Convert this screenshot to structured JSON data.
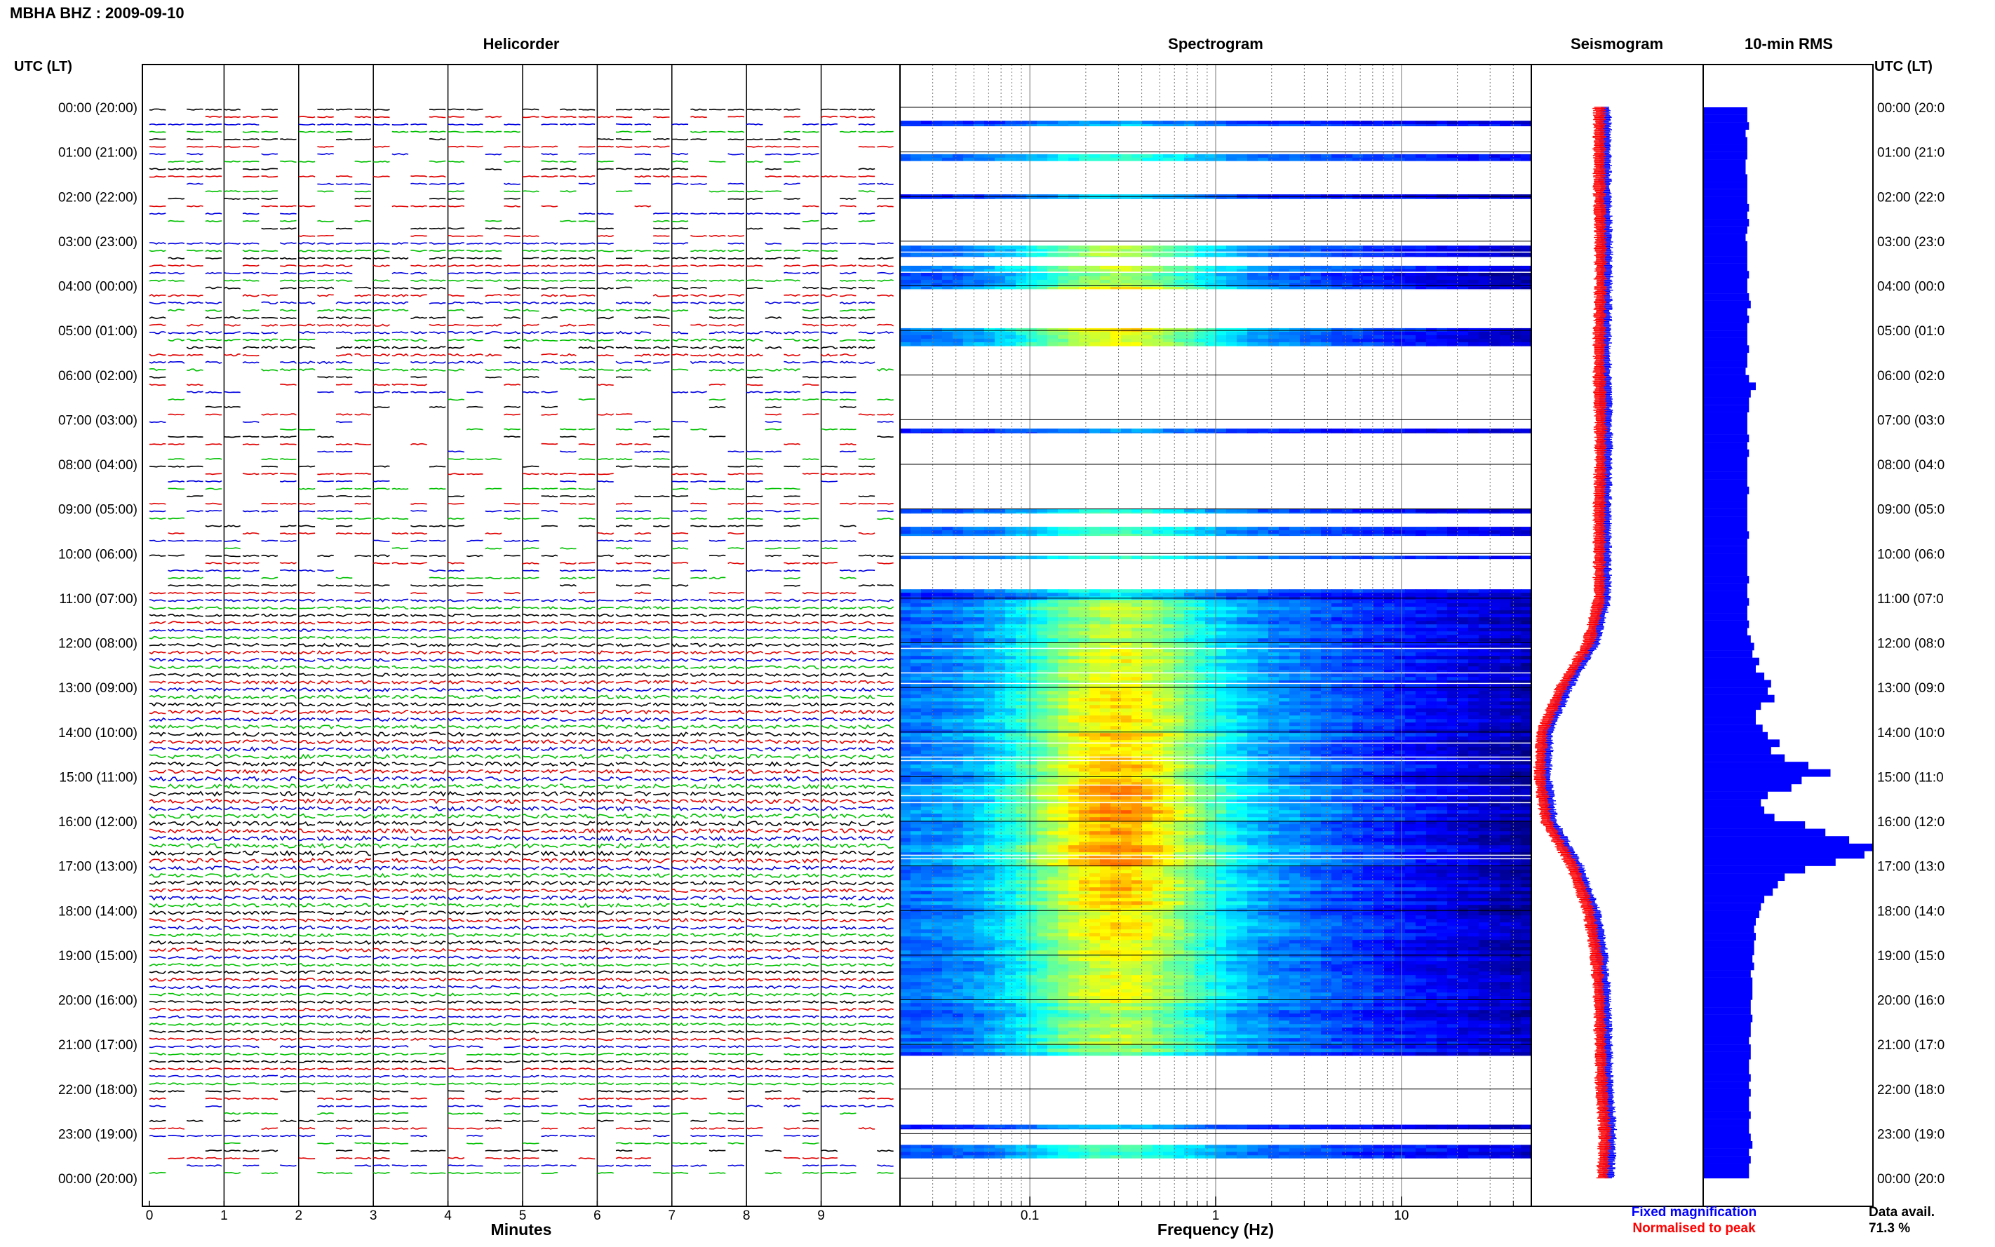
{
  "header": {
    "station_date": "MBHA BHZ : 2009-09-10",
    "utc_label_left": "UTC (LT)",
    "utc_label_right": "UTC (LT)"
  },
  "panels": {
    "helicorder_title": "Helicorder",
    "spectrogram_title": "Spectrogram",
    "seismogram_title": "Seismogram",
    "rms_title": "10-min RMS"
  },
  "time_labels": [
    "00:00 (20:00)",
    "01:00 (21:00)",
    "02:00 (22:00)",
    "03:00 (23:00)",
    "04:00 (00:00)",
    "05:00 (01:00)",
    "06:00 (02:00)",
    "07:00 (03:00)",
    "08:00 (04:00)",
    "09:00 (05:00)",
    "10:00 (06:00)",
    "11:00 (07:00)",
    "12:00 (08:00)",
    "13:00 (09:00)",
    "14:00 (10:00)",
    "15:00 (11:00)",
    "16:00 (12:00)",
    "17:00 (13:00)",
    "18:00 (14:00)",
    "19:00 (15:00)",
    "20:00 (16:00)",
    "21:00 (17:00)",
    "22:00 (18:00)",
    "23:00 (19:00)",
    "00:00 (20:00)"
  ],
  "time_labels_right": [
    "00:00 (20:0",
    "01:00 (21:0",
    "02:00 (22:0",
    "03:00 (23:0",
    "04:00 (00:0",
    "05:00 (01:0",
    "06:00 (02:0",
    "07:00 (03:0",
    "08:00 (04:0",
    "09:00 (05:0",
    "10:00 (06:0",
    "11:00 (07:0",
    "12:00 (08:0",
    "13:00 (09:0",
    "14:00 (10:0",
    "15:00 (11:0",
    "16:00 (12:0",
    "17:00 (13:0",
    "18:00 (14:0",
    "19:00 (15:0",
    "20:00 (16:0",
    "21:00 (17:0",
    "22:00 (18:0",
    "23:00 (19:0",
    "00:00 (20:0"
  ],
  "footer": {
    "minutes_label": "Minutes",
    "frequency_label": "Frequency (Hz)",
    "legend_fixed": "Fixed magnification",
    "legend_normalised": "Normalised to peak",
    "data_avail_label": "Data avail.",
    "data_avail_value": "71.3 %"
  },
  "colors": {
    "trace_cycle": [
      "#000000",
      "#e00000",
      "#0000e0",
      "#00c000"
    ],
    "fixed": "#0000ff",
    "normalised": "#ff0000",
    "rms_bar": "#0000ff",
    "spec_dark": "#00008c"
  },
  "chart_data": [
    {
      "type": "line",
      "name": "helicorder",
      "xlabel": "Minutes",
      "x_ticks": [
        "0",
        "1",
        "2",
        "3",
        "4",
        "5",
        "6",
        "7",
        "8",
        "9"
      ],
      "xlim": [
        0,
        10
      ],
      "traces_per_hour": 6,
      "hours": 24,
      "activity_by_hour": [
        0.25,
        0.3,
        0.25,
        0.35,
        0.45,
        0.5,
        0.3,
        0.25,
        0.25,
        0.3,
        0.35,
        0.55,
        0.7,
        0.8,
        0.9,
        1.0,
        1.0,
        0.85,
        0.75,
        0.65,
        0.55,
        0.45,
        0.35,
        0.3
      ],
      "coverage_by_hour": [
        0.55,
        0.45,
        0.4,
        0.75,
        0.7,
        0.75,
        0.35,
        0.35,
        0.4,
        0.45,
        0.5,
        1.0,
        1.0,
        1.0,
        1.0,
        1.0,
        1.0,
        1.0,
        1.0,
        1.0,
        1.0,
        0.95,
        0.55,
        0.5
      ]
    },
    {
      "type": "heatmap",
      "name": "spectrogram",
      "xlabel": "Frequency (Hz)",
      "x_scale": "log",
      "xlim": [
        0.02,
        50
      ],
      "x_ticks": [
        "0.1",
        "1",
        "10"
      ],
      "rows_with_data": [
        [
          0.3,
          0.42
        ],
        [
          1.05,
          1.2
        ],
        [
          1.95,
          2.05
        ],
        [
          3.1,
          3.35
        ],
        [
          3.55,
          4.1
        ],
        [
          4.95,
          5.35
        ],
        [
          7.2,
          7.3
        ],
        [
          9.0,
          9.1
        ],
        [
          9.4,
          9.6
        ],
        [
          10.05,
          10.12
        ],
        [
          10.8,
          21.25
        ],
        [
          22.8,
          22.9
        ],
        [
          23.25,
          23.55
        ]
      ],
      "intensity_by_hour": [
        0.2,
        0.3,
        0.2,
        0.5,
        0.6,
        0.55,
        0.2,
        0.2,
        0.2,
        0.35,
        0.3,
        0.5,
        0.55,
        0.6,
        0.65,
        0.7,
        0.7,
        0.65,
        0.6,
        0.55,
        0.5,
        0.45,
        0.25,
        0.35
      ]
    },
    {
      "type": "line",
      "name": "seismogram",
      "series": [
        {
          "name": "Fixed magnification",
          "values_by_hour": [
            0.55,
            0.55,
            0.55,
            0.56,
            0.56,
            0.55,
            0.55,
            0.56,
            0.56,
            0.55,
            0.55,
            0.55,
            0.45,
            0.2,
            0.02,
            0.0,
            0.06,
            0.3,
            0.45,
            0.52,
            0.55,
            0.56,
            0.57,
            0.6,
            0.58
          ]
        },
        {
          "name": "Normalised to peak",
          "values_by_hour": [
            0.55,
            0.55,
            0.55,
            0.56,
            0.56,
            0.55,
            0.55,
            0.56,
            0.56,
            0.55,
            0.55,
            0.55,
            0.45,
            0.2,
            0.02,
            0.0,
            0.06,
            0.3,
            0.45,
            0.52,
            0.55,
            0.56,
            0.57,
            0.6,
            0.58
          ]
        }
      ]
    },
    {
      "type": "bar",
      "name": "rms",
      "values": [
        0.26,
        0.26,
        0.27,
        0.25,
        0.26,
        0.26,
        0.26,
        0.25,
        0.25,
        0.26,
        0.26,
        0.26,
        0.26,
        0.27,
        0.26,
        0.27,
        0.26,
        0.25,
        0.26,
        0.26,
        0.26,
        0.26,
        0.27,
        0.26,
        0.26,
        0.27,
        0.28,
        0.26,
        0.27,
        0.26,
        0.26,
        0.26,
        0.27,
        0.26,
        0.26,
        0.25,
        0.27,
        0.31,
        0.28,
        0.27,
        0.27,
        0.26,
        0.26,
        0.26,
        0.27,
        0.26,
        0.27,
        0.26,
        0.26,
        0.26,
        0.26,
        0.27,
        0.26,
        0.26,
        0.26,
        0.26,
        0.26,
        0.27,
        0.26,
        0.26,
        0.26,
        0.26,
        0.26,
        0.27,
        0.26,
        0.26,
        0.27,
        0.26,
        0.26,
        0.27,
        0.26,
        0.28,
        0.3,
        0.29,
        0.33,
        0.31,
        0.36,
        0.4,
        0.38,
        0.42,
        0.34,
        0.31,
        0.31,
        0.35,
        0.38,
        0.45,
        0.4,
        0.48,
        0.62,
        0.75,
        0.58,
        0.52,
        0.38,
        0.34,
        0.36,
        0.42,
        0.6,
        0.72,
        0.86,
        1.0,
        0.95,
        0.78,
        0.6,
        0.48,
        0.44,
        0.41,
        0.36,
        0.34,
        0.33,
        0.31,
        0.3,
        0.31,
        0.3,
        0.3,
        0.29,
        0.3,
        0.28,
        0.29,
        0.29,
        0.29,
        0.28,
        0.28,
        0.29,
        0.28,
        0.28,
        0.27,
        0.28,
        0.28,
        0.27,
        0.27,
        0.28,
        0.27,
        0.28,
        0.27,
        0.27,
        0.28,
        0.27,
        0.27,
        0.28,
        0.29,
        0.27,
        0.28,
        0.27,
        0.27
      ]
    }
  ]
}
